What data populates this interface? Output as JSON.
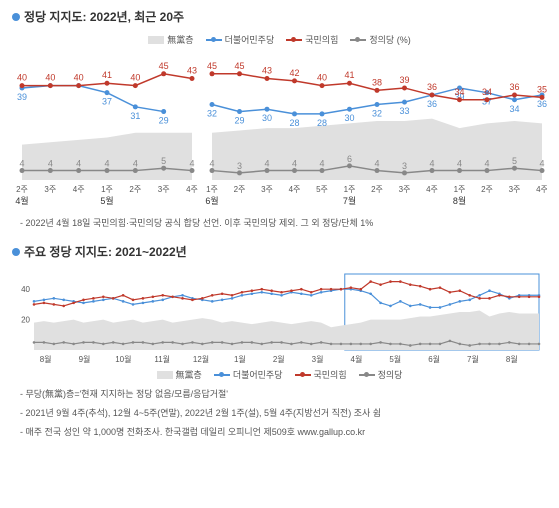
{
  "chart1": {
    "title": "정당 지지도: 2022년, 최근 20주",
    "type": "line",
    "legend": [
      {
        "label": "無黨층",
        "type": "area",
        "color": "#d8d8d8"
      },
      {
        "label": "더불어민주당",
        "type": "line",
        "color": "#4a90d9"
      },
      {
        "label": "국민의힘",
        "type": "line",
        "color": "#c0392b"
      },
      {
        "label": "정의당 (%)",
        "type": "line",
        "color": "#888888"
      }
    ],
    "panels": [
      {
        "x_labels_top": [
          "2주",
          "3주",
          "4주",
          "1주",
          "2주",
          "3주",
          "4주"
        ],
        "x_labels_bottom": [
          "4월",
          "",
          "",
          "5월",
          "",
          "",
          ""
        ],
        "series": {
          "area": [
            15,
            16,
            17,
            18,
            20,
            20,
            20
          ],
          "blue": [
            39,
            40,
            40,
            37,
            31,
            29,
            null
          ],
          "blue_labels": [
            39,
            null,
            null,
            37,
            31,
            29,
            null
          ],
          "red": [
            40,
            40,
            40,
            41,
            40,
            45,
            43
          ],
          "red_labels": [
            40,
            40,
            40,
            41,
            40,
            45,
            43
          ],
          "gray": [
            4,
            4,
            4,
            4,
            4,
            5,
            4
          ],
          "gray_labels": [
            4,
            4,
            4,
            4,
            4,
            5,
            4
          ]
        }
      },
      {
        "x_labels_top": [
          "1주",
          "2주",
          "3주",
          "4주",
          "5주",
          "1주",
          "2주",
          "3주",
          "4주",
          "1주",
          "2주",
          "3주",
          "4주"
        ],
        "x_labels_bottom": [
          "6월",
          "",
          "",
          "",
          "",
          "7월",
          "",
          "",
          "",
          "8월",
          "",
          "",
          ""
        ],
        "series": {
          "area": [
            20,
            21,
            22,
            22,
            23,
            24,
            25,
            25,
            26,
            22,
            24,
            25,
            24
          ],
          "blue": [
            32,
            29,
            30,
            28,
            28,
            30,
            32,
            33,
            36,
            39,
            37,
            34,
            36
          ],
          "blue_labels": [
            32,
            29,
            30,
            28,
            28,
            30,
            32,
            33,
            36,
            39,
            37,
            34,
            36
          ],
          "red": [
            45,
            45,
            43,
            42,
            40,
            41,
            38,
            39,
            36,
            34,
            34,
            36,
            35
          ],
          "red_labels": [
            45,
            45,
            43,
            42,
            40,
            41,
            38,
            39,
            36,
            34,
            34,
            36,
            35
          ],
          "gray": [
            4,
            3,
            4,
            4,
            4,
            6,
            4,
            3,
            4,
            4,
            4,
            5,
            4
          ],
          "gray_labels": [
            4,
            3,
            4,
            4,
            4,
            6,
            4,
            3,
            4,
            4,
            4,
            5,
            4
          ]
        }
      }
    ],
    "ylim": [
      0,
      50
    ],
    "colors": {
      "blue": "#4a90d9",
      "red": "#c0392b",
      "gray": "#888888",
      "area": "#e0e0e0"
    },
    "footnote": "- 2022년 4월 18일 국민의힘·국민의당 공식 합당 선언. 이후 국민의당 제외. 그 외 정당/단체 1%"
  },
  "chart2": {
    "title": "주요 정당 지지도: 2021~2022년",
    "type": "line",
    "legend": [
      {
        "label": "無黨층",
        "type": "area",
        "color": "#d8d8d8"
      },
      {
        "label": "더불어민주당",
        "type": "line",
        "color": "#4a90d9"
      },
      {
        "label": "국민의힘",
        "type": "line",
        "color": "#c0392b"
      },
      {
        "label": "정의당",
        "type": "line",
        "color": "#888888"
      }
    ],
    "x_labels": [
      "8월",
      "9월",
      "10월",
      "11월",
      "12월",
      "1월",
      "2월",
      "3월",
      "4월",
      "5월",
      "6월",
      "7월",
      "8월"
    ],
    "y_ticks": [
      20,
      40
    ],
    "ylim": [
      0,
      50
    ],
    "highlight_range": [
      8,
      13
    ],
    "colors": {
      "blue": "#4a90d9",
      "red": "#c0392b",
      "gray": "#888888",
      "area": "#e0e0e0"
    },
    "weekly_points": 52,
    "series": {
      "blue": [
        32,
        33,
        34,
        33,
        32,
        31,
        32,
        33,
        34,
        32,
        30,
        31,
        32,
        33,
        35,
        36,
        34,
        33,
        32,
        33,
        34,
        36,
        37,
        38,
        37,
        36,
        38,
        37,
        36,
        38,
        39,
        40,
        40,
        39,
        37,
        31,
        29,
        32,
        29,
        30,
        28,
        28,
        30,
        32,
        33,
        36,
        39,
        37,
        34,
        36,
        36,
        36
      ],
      "red": [
        30,
        31,
        30,
        29,
        31,
        33,
        34,
        35,
        34,
        36,
        33,
        34,
        35,
        36,
        35,
        34,
        33,
        34,
        36,
        37,
        36,
        38,
        39,
        40,
        39,
        38,
        39,
        40,
        38,
        40,
        40,
        40,
        41,
        40,
        45,
        43,
        45,
        45,
        43,
        42,
        40,
        41,
        38,
        39,
        36,
        34,
        34,
        36,
        35,
        35,
        35,
        35
      ],
      "gray": [
        5,
        5,
        4,
        5,
        4,
        5,
        5,
        4,
        5,
        4,
        5,
        5,
        4,
        5,
        5,
        4,
        5,
        4,
        5,
        5,
        4,
        5,
        5,
        4,
        5,
        5,
        4,
        5,
        4,
        5,
        4,
        4,
        4,
        4,
        4,
        5,
        4,
        4,
        3,
        4,
        4,
        4,
        6,
        4,
        3,
        4,
        4,
        4,
        5,
        4,
        4,
        4
      ],
      "area": [
        18,
        19,
        18,
        19,
        20,
        18,
        19,
        20,
        18,
        19,
        20,
        18,
        19,
        20,
        18,
        19,
        20,
        21,
        20,
        18,
        19,
        18,
        17,
        18,
        19,
        18,
        17,
        18,
        19,
        18,
        15,
        16,
        17,
        18,
        20,
        20,
        20,
        20,
        21,
        22,
        22,
        23,
        24,
        25,
        25,
        26,
        22,
        24,
        25,
        24,
        24,
        24
      ]
    },
    "footnotes": [
      "- 무당(無黨)층='현재 지지하는 정당 없음/모름/응답거절'",
      "- 2021년 9월 4주(추석), 12월 4~5주(연말), 2022년 2월 1주(설), 5월 4주(지방선거 직전) 조사 쉼",
      "- 매주 전국 성인 약 1,000명 전화조사. 한국갤럽 데일리 오피니언 제509호 www.gallup.co.kr"
    ]
  }
}
